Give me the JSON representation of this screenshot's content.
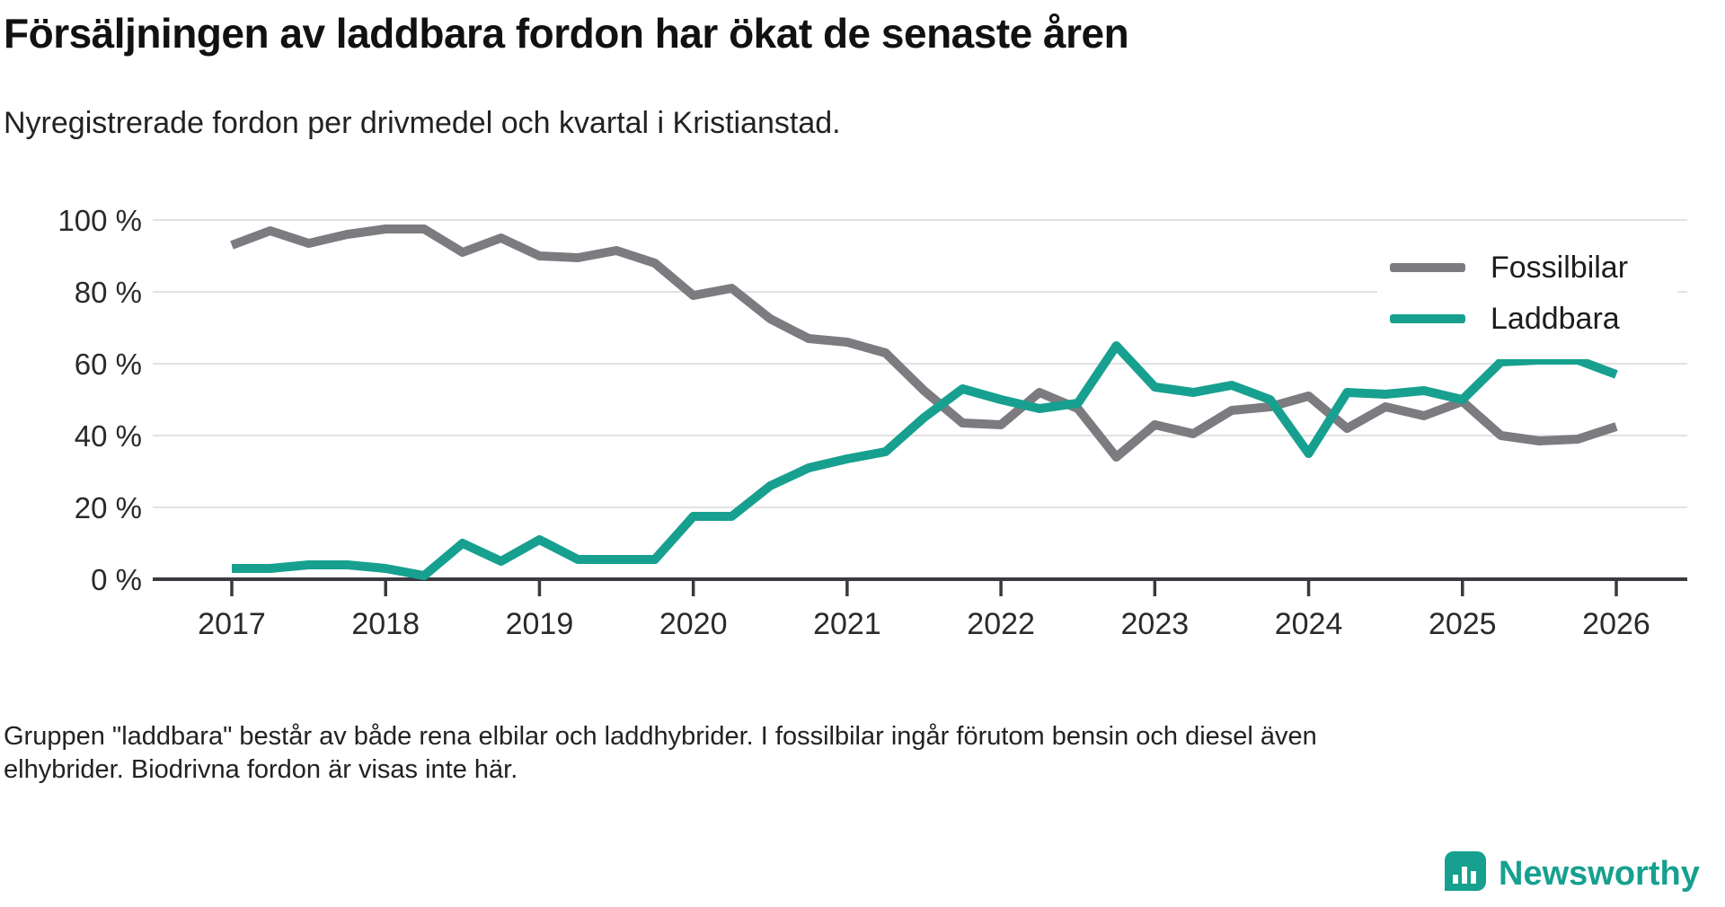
{
  "header": {
    "title": "Försäljningen av laddbara fordon har ökat de senaste åren",
    "subtitle": "Nyregistrerade fordon per drivmedel och kvartal i Kristianstad."
  },
  "chart_data": {
    "type": "line",
    "title": "Försäljningen av laddbara fordon har ökat de senaste åren",
    "subtitle": "Nyregistrerade fordon per drivmedel och kvartal i Kristianstad.",
    "x_frequency": "quarterly",
    "x_start": "2017-Q1",
    "x_end": "2026-Q1",
    "x_tick_labels": [
      "2017",
      "2018",
      "2019",
      "2020",
      "2021",
      "2022",
      "2023",
      "2024",
      "2025",
      "2026"
    ],
    "y_ticks": [
      0,
      20,
      40,
      60,
      80,
      100
    ],
    "y_tick_labels": [
      "0 %",
      "20 %",
      "40 %",
      "60 %",
      "80 %",
      "100 %"
    ],
    "ylim": [
      0,
      100
    ],
    "grid": "horizontal",
    "legend_position": "top-right",
    "series": [
      {
        "name": "Fossilbilar",
        "color": "#7b7b80",
        "values": [
          93,
          97,
          93.5,
          96,
          97.5,
          97.5,
          91,
          95,
          90,
          89.5,
          91.5,
          88,
          79,
          81,
          72.5,
          67,
          66,
          63,
          52.5,
          43.5,
          43,
          52,
          47.5,
          34,
          43,
          40.5,
          47,
          48,
          51,
          42,
          48,
          45.5,
          49.5,
          40,
          38.5,
          39,
          42.5
        ]
      },
      {
        "name": "Laddbara",
        "color": "#17a08f",
        "values": [
          3,
          3,
          4,
          4,
          3,
          1,
          10,
          5,
          11,
          5.5,
          5.5,
          5.5,
          17.5,
          17.5,
          26,
          31,
          33.5,
          35.5,
          45,
          53,
          50,
          47.5,
          49,
          65,
          53.5,
          52,
          54,
          50,
          35,
          52,
          51.5,
          52.5,
          50,
          60.5,
          61,
          61,
          57
        ]
      }
    ],
    "axis_color": "#3a3a3e",
    "gridline_color": "#e2e2e2",
    "tick_label_color": "#2a2a2a"
  },
  "footnote": {
    "line1": "Gruppen \"laddbara\" består av både rena elbilar och laddhybrider. I fossilbilar ingår förutom bensin och diesel även",
    "line2": "elhybrider. Biodrivna fordon är visas inte här."
  },
  "brand": {
    "name": "Newsworthy",
    "color": "#17a08f"
  }
}
